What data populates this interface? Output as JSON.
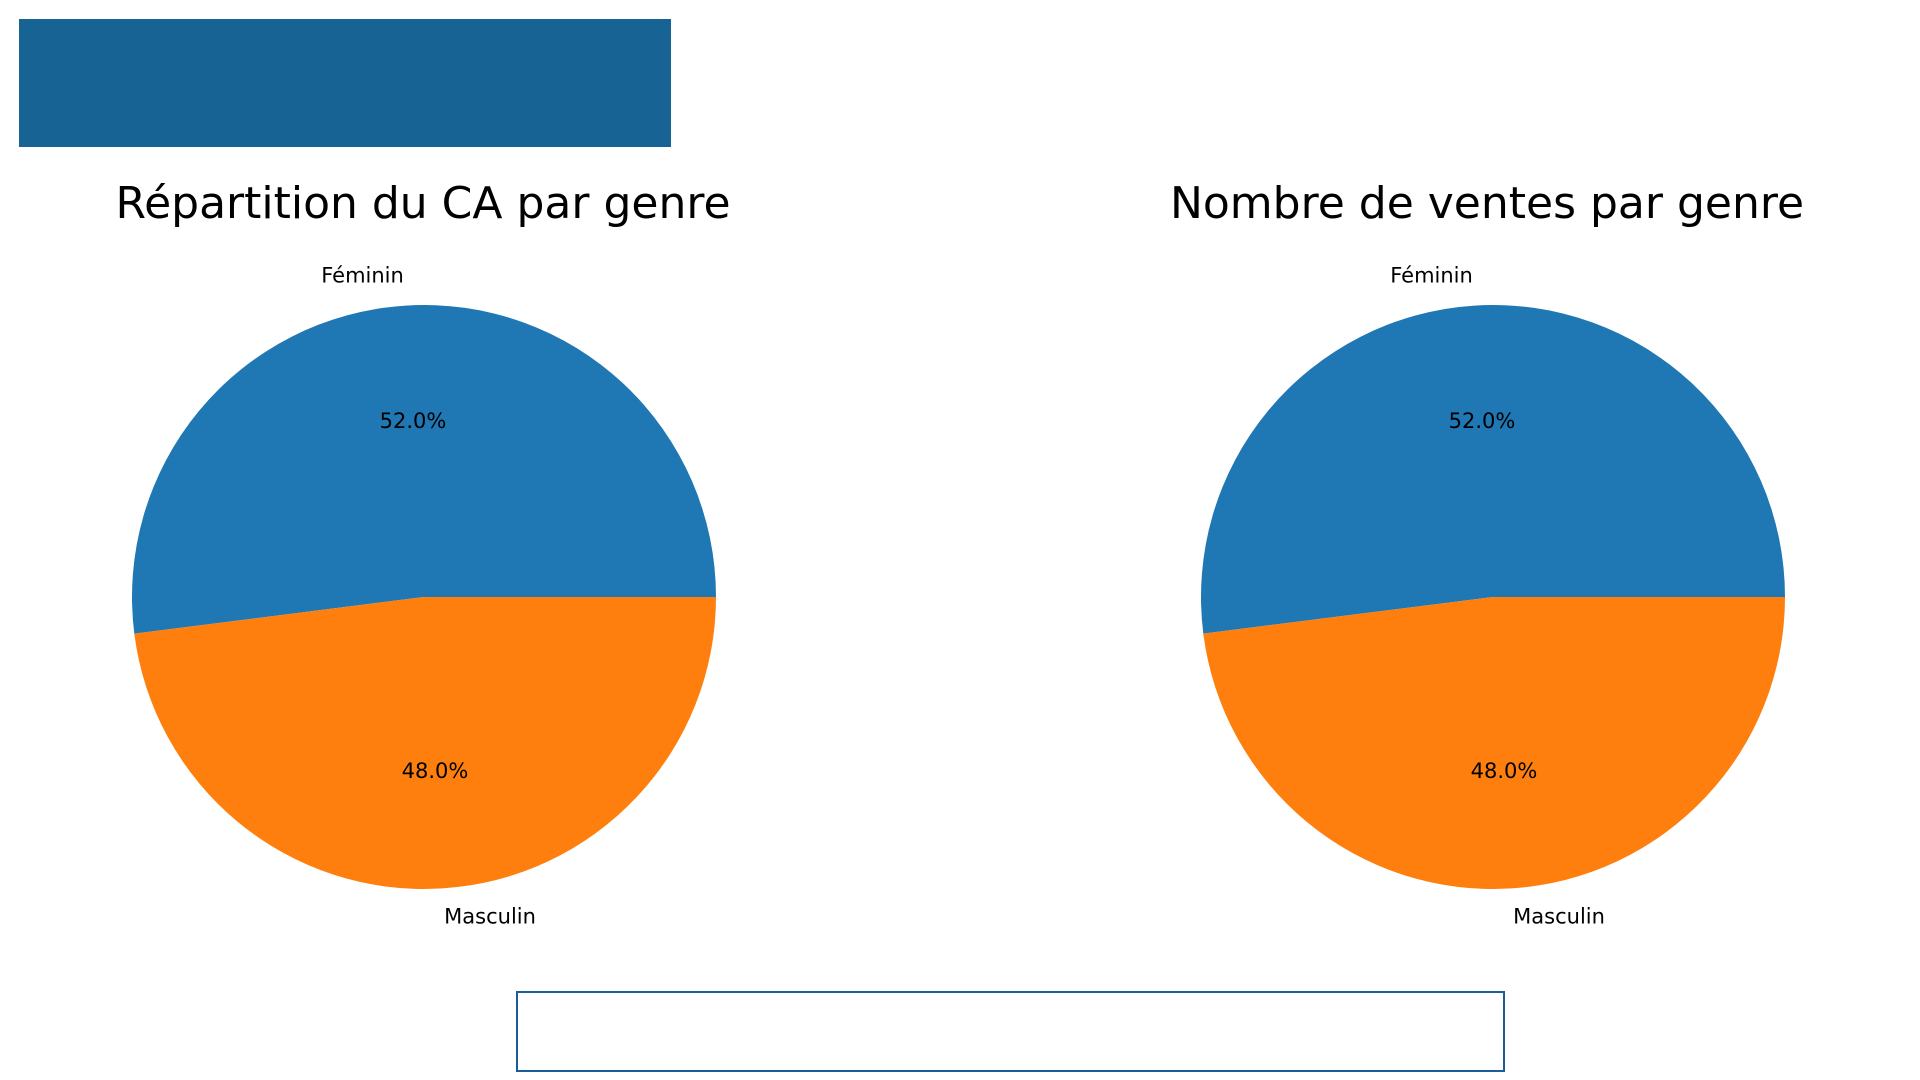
{
  "colors": {
    "banner": "#176494",
    "footer_border": "#1d5c9b",
    "background": "#ffffff"
  },
  "chart_data": [
    {
      "type": "pie",
      "title": "Répartition du CA par genre",
      "labels": [
        "Féminin",
        "Masculin"
      ],
      "values": [
        52.0,
        48.0
      ],
      "percent_labels": [
        "52.0%",
        "48.0%"
      ],
      "colors": [
        "#1f77b4",
        "#ff7f0e"
      ],
      "start_angle_deg": 0,
      "direction": "counterclockwise"
    },
    {
      "type": "pie",
      "title": "Nombre de ventes par genre",
      "labels": [
        "Féminin",
        "Masculin"
      ],
      "values": [
        52.0,
        48.0
      ],
      "percent_labels": [
        "52.0%",
        "48.0%"
      ],
      "colors": [
        "#1f77b4",
        "#ff7f0e"
      ],
      "start_angle_deg": 0,
      "direction": "counterclockwise"
    }
  ]
}
